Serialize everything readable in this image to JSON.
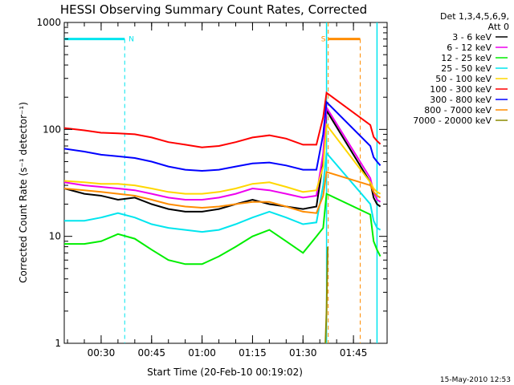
{
  "chart_data": {
    "type": "line",
    "title": "HESSI Observing Summary Count Rates, Corrected",
    "xlabel": "Start Time (20-Feb-10 00:19:02)",
    "ylabel": "Corrected Count Rate (s⁻¹ detector⁻¹)",
    "y_scale": "log",
    "ylim": [
      1,
      1000
    ],
    "xlim": [
      "00:19:02",
      "01:55:00"
    ],
    "x_ticks": [
      "00:30",
      "00:45",
      "01:00",
      "01:15",
      "01:30",
      "01:45"
    ],
    "y_ticks": [
      "1",
      "10",
      "100",
      "1000"
    ],
    "legend_header": [
      "Det 1,3,4,5,6,9,",
      "Att 0"
    ],
    "legend_placement": "right",
    "timestamp": "15-May-2010 12:53",
    "markers": [
      {
        "label": "N",
        "start": "00:19:02",
        "end": "00:37:00",
        "color": "#00e5ee"
      },
      {
        "label": "S",
        "start": "01:37:30",
        "end": "01:47:00",
        "color": "#ff8c00"
      }
    ],
    "intervals": [
      {
        "start": "01:37:00",
        "end": "01:52:00",
        "color": "#00e5ee",
        "label": ""
      }
    ],
    "data_gaps": [
      {
        "start": "01:37:30",
        "end": "01:50:30"
      }
    ],
    "series": [
      {
        "name": "3 - 6 keV",
        "color": "#000000",
        "x": [
          "00:19:02",
          "00:25",
          "00:30",
          "00:35",
          "00:40",
          "00:45",
          "00:50",
          "00:55",
          "01:00",
          "01:05",
          "01:10",
          "01:15",
          "01:20",
          "01:25",
          "01:30",
          "01:34",
          "01:36",
          "01:37",
          "01:50",
          "01:51",
          "01:52",
          "01:53"
        ],
        "values": [
          28,
          25,
          24,
          22,
          23,
          20,
          18,
          17,
          17,
          18,
          20,
          22,
          20,
          19,
          18,
          19,
          50,
          150,
          32,
          23,
          20,
          19
        ]
      },
      {
        "name": "6 - 12 keV",
        "color": "#ee00ee",
        "x": [
          "00:19:02",
          "00:25",
          "00:30",
          "00:35",
          "00:40",
          "00:45",
          "00:50",
          "00:55",
          "01:00",
          "01:05",
          "01:10",
          "01:15",
          "01:20",
          "01:25",
          "01:30",
          "01:34",
          "01:36",
          "01:37",
          "01:50",
          "01:51",
          "01:52",
          "01:53"
        ],
        "values": [
          32,
          30,
          29,
          28,
          27,
          25,
          23,
          22,
          22,
          23,
          25,
          28,
          27,
          25,
          23,
          24,
          60,
          160,
          35,
          26,
          22,
          21
        ]
      },
      {
        "name": "12 - 25 keV",
        "color": "#00ee00",
        "x": [
          "00:19:02",
          "00:25",
          "00:30",
          "00:35",
          "00:40",
          "00:45",
          "00:50",
          "00:55",
          "01:00",
          "01:05",
          "01:10",
          "01:15",
          "01:20",
          "01:25",
          "01:30",
          "01:34",
          "01:36",
          "01:37",
          "01:50",
          "01:51",
          "01:52",
          "01:53"
        ],
        "values": [
          8.5,
          8.5,
          9,
          10.5,
          9.5,
          7.5,
          6,
          5.5,
          5.5,
          6.5,
          8,
          10,
          11.5,
          9,
          7,
          10,
          12,
          25,
          16,
          9,
          7.5,
          6.5
        ]
      },
      {
        "name": "25 - 50 keV",
        "color": "#00e5ee",
        "x": [
          "00:19:02",
          "00:25",
          "00:30",
          "00:35",
          "00:40",
          "00:45",
          "00:50",
          "00:55",
          "01:00",
          "01:05",
          "01:10",
          "01:15",
          "01:20",
          "01:25",
          "01:30",
          "01:34",
          "01:36",
          "01:37",
          "01:50",
          "01:51",
          "01:52",
          "01:53"
        ],
        "values": [
          14,
          14,
          15,
          16.5,
          15,
          13,
          12,
          11.5,
          11,
          11.5,
          13,
          15,
          17,
          15,
          13,
          13.5,
          30,
          60,
          20,
          14,
          12,
          11.5
        ]
      },
      {
        "name": "50 - 100 keV",
        "color": "#ffd700",
        "x": [
          "00:19:02",
          "00:25",
          "00:30",
          "00:35",
          "00:40",
          "00:45",
          "00:50",
          "00:55",
          "01:00",
          "01:05",
          "01:10",
          "01:15",
          "01:20",
          "01:25",
          "01:30",
          "01:34",
          "01:36",
          "01:37",
          "01:50",
          "01:51",
          "01:52",
          "01:53"
        ],
        "values": [
          33,
          32,
          31,
          31,
          30,
          28,
          26,
          25,
          25,
          26,
          28,
          31,
          32,
          29,
          26,
          27,
          45,
          110,
          32,
          28,
          26,
          25
        ]
      },
      {
        "name": "100 - 300 keV",
        "color": "#ff0000",
        "x": [
          "00:19:02",
          "00:25",
          "00:30",
          "00:35",
          "00:40",
          "00:45",
          "00:50",
          "00:55",
          "01:00",
          "01:05",
          "01:10",
          "01:15",
          "01:20",
          "01:25",
          "01:30",
          "01:34",
          "01:36",
          "01:37",
          "01:50",
          "01:51",
          "01:52",
          "01:53"
        ],
        "values": [
          103,
          98,
          93,
          92,
          90,
          84,
          76,
          72,
          68,
          70,
          76,
          84,
          88,
          82,
          72,
          72,
          130,
          220,
          110,
          85,
          78,
          73
        ]
      },
      {
        "name": "300 - 800 keV",
        "color": "#0000ff",
        "x": [
          "00:19:02",
          "00:25",
          "00:30",
          "00:35",
          "00:40",
          "00:45",
          "00:50",
          "00:55",
          "01:00",
          "01:05",
          "01:10",
          "01:15",
          "01:20",
          "01:25",
          "01:30",
          "01:34",
          "01:36",
          "01:37",
          "01:50",
          "01:51",
          "01:52",
          "01:53"
        ],
        "values": [
          66,
          62,
          58,
          56,
          54,
          50,
          45,
          42,
          41,
          42,
          45,
          48,
          49,
          46,
          42,
          42,
          90,
          180,
          70,
          55,
          50,
          46
        ]
      },
      {
        "name": "800 - 7000 keV",
        "color": "#ff8c00",
        "x": [
          "00:19:02",
          "00:25",
          "00:30",
          "00:35",
          "00:40",
          "00:45",
          "00:50",
          "00:55",
          "01:00",
          "01:05",
          "01:10",
          "01:15",
          "01:20",
          "01:25",
          "01:30",
          "01:34",
          "01:36",
          "01:37",
          "01:50",
          "01:51",
          "01:52",
          "01:53"
        ],
        "values": [
          28,
          27,
          26,
          25,
          24,
          22,
          20,
          19,
          18.5,
          19,
          20,
          21,
          21,
          19,
          17,
          16.5,
          24,
          40,
          30,
          26,
          24,
          23
        ]
      },
      {
        "name": "7000 - 20000 keV",
        "color": "#8b8b00",
        "x": [
          "01:36:40",
          "01:37:00",
          "01:37:20"
        ],
        "values": [
          1,
          2,
          8
        ]
      }
    ]
  }
}
